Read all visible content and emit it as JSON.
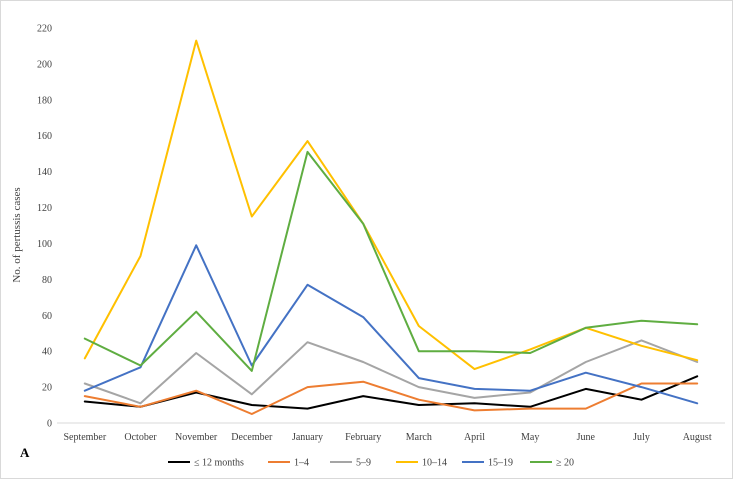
{
  "chart_data": {
    "type": "line",
    "panel_label": "A",
    "ylabel": "No. of pertussis cases",
    "xlabel": "",
    "ylim": [
      0,
      220
    ],
    "yticks": [
      "0",
      "20",
      "40",
      "60",
      "80",
      "100",
      "120",
      "140",
      "160",
      "180",
      "200",
      "220"
    ],
    "categories": [
      "September",
      "October",
      "November",
      "December",
      "January",
      "February",
      "March",
      "April",
      "May",
      "June",
      "July",
      "August"
    ],
    "grid": false,
    "legend_position": "bottom",
    "series": [
      {
        "name": "≤ 12 months",
        "color": "#000000",
        "values": [
          12,
          9,
          17,
          10,
          8,
          15,
          10,
          11,
          9,
          19,
          13,
          26
        ]
      },
      {
        "name": "1–4",
        "color": "#ED7D31",
        "values": [
          15,
          9,
          18,
          5,
          20,
          23,
          13,
          7,
          8,
          8,
          22,
          22
        ]
      },
      {
        "name": "5–9",
        "color": "#A5A5A5",
        "values": [
          22,
          11,
          39,
          16,
          45,
          34,
          20,
          14,
          17,
          34,
          46,
          34
        ]
      },
      {
        "name": "10–14",
        "color": "#FFC000",
        "values": [
          36,
          93,
          213,
          115,
          157,
          111,
          54,
          30,
          41,
          53,
          43,
          35
        ]
      },
      {
        "name": "15–19",
        "color": "#4472C4",
        "values": [
          18,
          31,
          99,
          32,
          77,
          59,
          25,
          19,
          18,
          28,
          20,
          11
        ]
      },
      {
        "name": "≥ 20",
        "color": "#5FAD41",
        "values": [
          47,
          32,
          62,
          29,
          151,
          111,
          40,
          40,
          39,
          53,
          57,
          55
        ]
      }
    ]
  }
}
